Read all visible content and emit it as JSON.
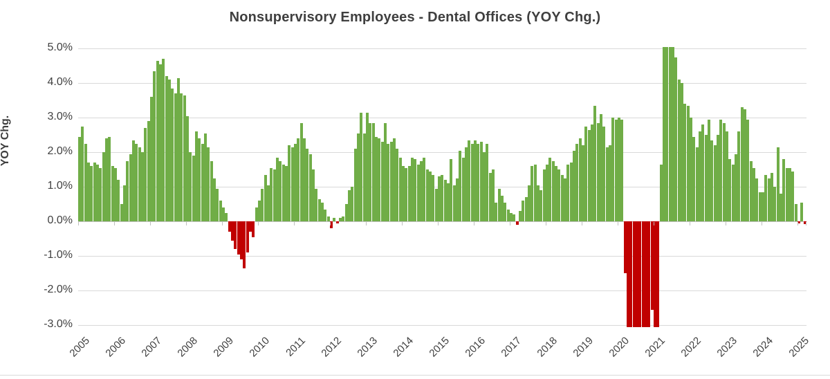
{
  "title": "Nonsupervisory Employees - Dental Offices (YOY Chg.)",
  "y_axis_title": "YOY Chg.",
  "chart_data": {
    "type": "bar",
    "title": "Nonsupervisory Employees - Dental Offices (YOY Chg.)",
    "ylabel": "YOY Chg.",
    "xlabel": "",
    "x_unit": "month",
    "start_month": "2005-01",
    "end_month": "2025-03",
    "ylim": [
      -3.06,
      5.16
    ],
    "grid": "horizontal",
    "legend": "none",
    "clip_note": "values stored at -3.05 are drawn clipped at the bottom axis edge; values at 5.05 slightly exceed the 5.0% gridline",
    "y_tick_values": [
      5,
      4,
      3,
      2,
      1,
      0,
      -1,
      -2,
      -3
    ],
    "y_tick_labels": [
      "5.0%",
      "4.0%",
      "3.0%",
      "2.0%",
      "1.0%",
      "0.0%",
      "-1.0%",
      "-2.0%",
      "-3.0%"
    ],
    "year_labels": [
      "2005",
      "2006",
      "2007",
      "2008",
      "2009",
      "2010",
      "2011",
      "2012",
      "2013",
      "2014",
      "2015",
      "2016",
      "2017",
      "2018",
      "2019",
      "2020",
      "2021",
      "2022",
      "2023",
      "2024",
      "2025"
    ],
    "colors": {
      "positive_bar": "#70AD47",
      "negative_bar": "#C00000",
      "gridline": "#D9D9D9",
      "axis_line": "#BFBFBF",
      "text": "#404040"
    },
    "series": [
      {
        "name": "YOY Chg.",
        "values": [
          2.45,
          2.75,
          2.25,
          1.7,
          1.6,
          1.7,
          1.65,
          1.55,
          2.0,
          2.4,
          2.45,
          1.6,
          1.55,
          1.2,
          0.5,
          1.05,
          1.75,
          1.95,
          2.35,
          2.25,
          2.15,
          2.0,
          2.7,
          2.9,
          3.6,
          4.35,
          4.65,
          4.55,
          4.7,
          4.2,
          4.1,
          3.85,
          3.7,
          4.15,
          3.7,
          3.65,
          3.05,
          2.0,
          1.9,
          2.6,
          2.4,
          2.25,
          2.55,
          2.15,
          1.75,
          1.25,
          0.95,
          0.6,
          0.4,
          0.25,
          -0.3,
          -0.55,
          -0.8,
          -0.95,
          -1.1,
          -1.35,
          -0.9,
          -0.3,
          -0.45,
          0.4,
          0.6,
          0.95,
          1.35,
          1.05,
          1.55,
          1.5,
          1.85,
          1.75,
          1.65,
          1.6,
          2.2,
          2.15,
          2.25,
          2.4,
          2.85,
          2.4,
          2.1,
          1.95,
          1.5,
          0.95,
          0.65,
          0.55,
          0.35,
          0.15,
          -0.2,
          0.1,
          -0.05,
          0.1,
          0.15,
          0.5,
          0.9,
          1.0,
          2.1,
          2.55,
          3.15,
          2.55,
          3.15,
          2.85,
          2.85,
          2.45,
          2.4,
          2.3,
          2.85,
          2.25,
          2.3,
          2.4,
          2.1,
          1.85,
          1.6,
          1.55,
          1.6,
          1.85,
          1.8,
          1.65,
          1.75,
          1.85,
          1.5,
          1.45,
          1.35,
          0.95,
          1.3,
          1.35,
          1.2,
          1.1,
          1.8,
          1.05,
          1.25,
          2.05,
          1.85,
          2.15,
          2.35,
          2.25,
          2.35,
          2.25,
          2.3,
          2.0,
          2.25,
          1.4,
          1.5,
          0.55,
          0.95,
          0.75,
          0.55,
          0.35,
          0.25,
          0.2,
          -0.1,
          0.3,
          0.6,
          0.7,
          1.05,
          1.6,
          1.65,
          1.05,
          0.9,
          1.5,
          1.65,
          1.85,
          1.75,
          1.6,
          1.5,
          1.35,
          1.25,
          1.65,
          1.7,
          2.05,
          2.25,
          2.4,
          2.2,
          2.75,
          2.65,
          2.8,
          3.35,
          2.85,
          3.1,
          2.75,
          2.15,
          2.2,
          3.0,
          2.95,
          3.0,
          2.95,
          -1.5,
          -3.05,
          -3.05,
          -3.05,
          -3.05,
          -3.05,
          -3.05,
          -3.05,
          -3.05,
          -2.55,
          -3.05,
          -3.05,
          1.65,
          5.05,
          5.05,
          5.05,
          5.05,
          4.75,
          4.1,
          4.0,
          3.4,
          3.35,
          3.0,
          2.45,
          2.15,
          2.6,
          2.8,
          2.5,
          2.95,
          2.35,
          2.2,
          2.5,
          2.95,
          2.85,
          2.6,
          1.8,
          1.65,
          1.95,
          2.6,
          3.3,
          3.25,
          2.95,
          1.75,
          1.55,
          1.25,
          0.85,
          0.85,
          1.35,
          1.25,
          1.4,
          1.0,
          2.15,
          0.8,
          1.8,
          1.55,
          1.55,
          1.45,
          0.5,
          -0.05,
          0.55,
          -0.07
        ]
      }
    ]
  }
}
